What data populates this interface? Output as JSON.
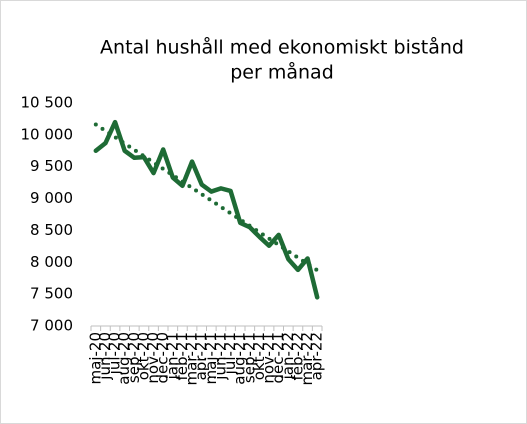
{
  "chart_data": {
    "type": "line",
    "title": [
      "Antal hushåll med ekonomiskt bistånd",
      "per månad"
    ],
    "categories": [
      "maj-20",
      "jun-20",
      "jul-20",
      "aug-20",
      "sep-20",
      "okt-20",
      "nov-20",
      "dec-20",
      "jan-21",
      "feb-21",
      "mar-21",
      "apr-21",
      "maj-21",
      "jun-21",
      "jul-21",
      "aug-21",
      "sep-21",
      "okt-21",
      "nov-21",
      "dec-21",
      "jan-22",
      "feb-22",
      "mar-22",
      "apr-22"
    ],
    "values": [
      9750,
      9870,
      10200,
      9750,
      9640,
      9650,
      9400,
      9770,
      9330,
      9200,
      9580,
      9220,
      9110,
      9160,
      9120,
      8620,
      8550,
      8400,
      8260,
      8430,
      8050,
      7880,
      8060,
      7450
    ],
    "color": "#1e6b35",
    "trendline": "linear",
    "ylim": [
      7000,
      10500
    ],
    "yticks": [
      {
        "value": 7000,
        "label": "7 000"
      },
      {
        "value": 7500,
        "label": "7 500"
      },
      {
        "value": 8000,
        "label": "8 000"
      },
      {
        "value": 8500,
        "label": "8 500"
      },
      {
        "value": 9000,
        "label": "9 000"
      },
      {
        "value": 9500,
        "label": "9 500"
      },
      {
        "value": 10000,
        "label": "10 000"
      },
      {
        "value": 10500,
        "label": "10 500"
      }
    ],
    "grid": false
  }
}
